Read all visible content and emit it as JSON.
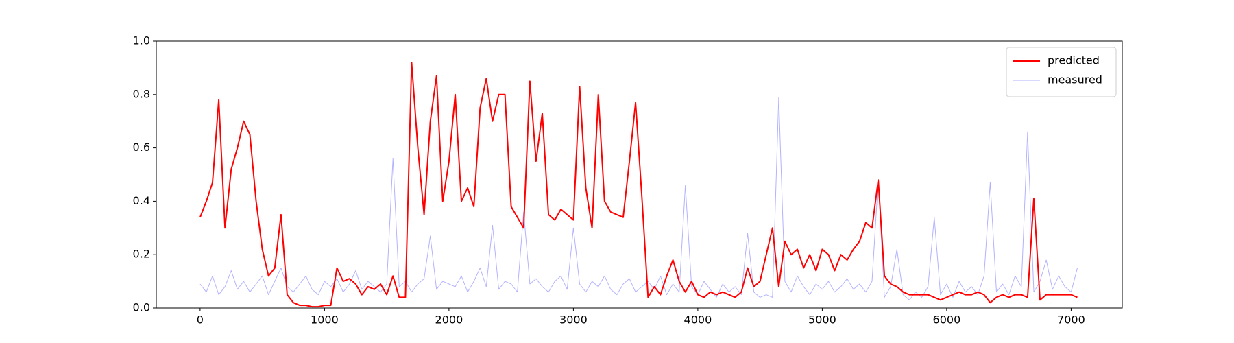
{
  "chart_data": {
    "type": "line",
    "x": [
      0,
      50,
      100,
      150,
      200,
      250,
      300,
      350,
      400,
      450,
      500,
      550,
      600,
      650,
      700,
      750,
      800,
      850,
      900,
      950,
      1000,
      1050,
      1100,
      1150,
      1200,
      1250,
      1300,
      1350,
      1400,
      1450,
      1500,
      1550,
      1600,
      1650,
      1700,
      1750,
      1800,
      1850,
      1900,
      1950,
      2000,
      2050,
      2100,
      2150,
      2200,
      2250,
      2300,
      2350,
      2400,
      2450,
      2500,
      2550,
      2600,
      2650,
      2700,
      2750,
      2800,
      2850,
      2900,
      2950,
      3000,
      3050,
      3100,
      3150,
      3200,
      3250,
      3300,
      3350,
      3400,
      3450,
      3500,
      3550,
      3600,
      3650,
      3700,
      3750,
      3800,
      3850,
      3900,
      3950,
      4000,
      4050,
      4100,
      4150,
      4200,
      4250,
      4300,
      4350,
      4400,
      4450,
      4500,
      4550,
      4600,
      4650,
      4700,
      4750,
      4800,
      4850,
      4900,
      4950,
      5000,
      5050,
      5100,
      5150,
      5200,
      5250,
      5300,
      5350,
      5400,
      5450,
      5500,
      5550,
      5600,
      5650,
      5700,
      5750,
      5800,
      5850,
      5900,
      5950,
      6000,
      6050,
      6100,
      6150,
      6200,
      6250,
      6300,
      6350,
      6400,
      6450,
      6500,
      6550,
      6600,
      6650,
      6700,
      6750,
      6800,
      6850,
      6900,
      6950,
      7000,
      7050
    ],
    "series": [
      {
        "name": "predicted",
        "color": "#ff0000",
        "width": 2,
        "opacity": 1,
        "values": [
          0.34,
          0.4,
          0.47,
          0.78,
          0.3,
          0.52,
          0.6,
          0.7,
          0.65,
          0.4,
          0.22,
          0.12,
          0.15,
          0.35,
          0.05,
          0.02,
          0.01,
          0.01,
          0.005,
          0.005,
          0.01,
          0.01,
          0.15,
          0.1,
          0.11,
          0.09,
          0.05,
          0.08,
          0.07,
          0.09,
          0.05,
          0.12,
          0.04,
          0.04,
          0.92,
          0.6,
          0.35,
          0.7,
          0.87,
          0.4,
          0.55,
          0.8,
          0.4,
          0.45,
          0.38,
          0.75,
          0.86,
          0.7,
          0.8,
          0.8,
          0.38,
          0.34,
          0.3,
          0.85,
          0.55,
          0.73,
          0.35,
          0.33,
          0.37,
          0.35,
          0.33,
          0.83,
          0.45,
          0.3,
          0.8,
          0.4,
          0.36,
          0.35,
          0.34,
          0.55,
          0.77,
          0.42,
          0.04,
          0.08,
          0.05,
          0.12,
          0.18,
          0.1,
          0.06,
          0.1,
          0.05,
          0.04,
          0.06,
          0.05,
          0.06,
          0.05,
          0.04,
          0.06,
          0.15,
          0.08,
          0.1,
          0.2,
          0.3,
          0.08,
          0.25,
          0.2,
          0.22,
          0.15,
          0.2,
          0.14,
          0.22,
          0.2,
          0.14,
          0.2,
          0.18,
          0.22,
          0.25,
          0.32,
          0.3,
          0.48,
          0.12,
          0.09,
          0.08,
          0.06,
          0.05,
          0.05,
          0.05,
          0.05,
          0.04,
          0.03,
          0.04,
          0.05,
          0.06,
          0.05,
          0.05,
          0.06,
          0.05,
          0.02,
          0.04,
          0.05,
          0.04,
          0.05,
          0.05,
          0.04,
          0.41,
          0.03,
          0.05,
          0.05,
          0.05,
          0.05,
          0.05,
          0.04
        ]
      },
      {
        "name": "measured",
        "color": "#0000ff",
        "width": 1,
        "opacity": 0.3,
        "values": [
          0.09,
          0.06,
          0.12,
          0.05,
          0.08,
          0.14,
          0.07,
          0.1,
          0.06,
          0.09,
          0.12,
          0.05,
          0.1,
          0.15,
          0.08,
          0.06,
          0.09,
          0.12,
          0.07,
          0.05,
          0.1,
          0.08,
          0.11,
          0.06,
          0.09,
          0.14,
          0.07,
          0.1,
          0.08,
          0.06,
          0.09,
          0.56,
          0.08,
          0.1,
          0.06,
          0.09,
          0.11,
          0.27,
          0.07,
          0.1,
          0.09,
          0.08,
          0.12,
          0.06,
          0.1,
          0.15,
          0.08,
          0.31,
          0.07,
          0.1,
          0.09,
          0.06,
          0.36,
          0.09,
          0.11,
          0.08,
          0.06,
          0.1,
          0.12,
          0.07,
          0.3,
          0.09,
          0.06,
          0.1,
          0.08,
          0.12,
          0.07,
          0.05,
          0.09,
          0.11,
          0.06,
          0.08,
          0.1,
          0.07,
          0.12,
          0.05,
          0.09,
          0.06,
          0.46,
          0.08,
          0.05,
          0.1,
          0.07,
          0.04,
          0.09,
          0.06,
          0.08,
          0.05,
          0.28,
          0.06,
          0.04,
          0.05,
          0.04,
          0.79,
          0.1,
          0.06,
          0.12,
          0.08,
          0.05,
          0.09,
          0.07,
          0.1,
          0.06,
          0.08,
          0.11,
          0.07,
          0.09,
          0.06,
          0.1,
          0.48,
          0.04,
          0.08,
          0.22,
          0.05,
          0.03,
          0.06,
          0.04,
          0.08,
          0.34,
          0.05,
          0.09,
          0.04,
          0.1,
          0.06,
          0.08,
          0.05,
          0.12,
          0.47,
          0.06,
          0.09,
          0.05,
          0.12,
          0.08,
          0.66,
          0.06,
          0.1,
          0.18,
          0.07,
          0.12,
          0.08,
          0.06,
          0.15
        ]
      }
    ],
    "xlim": [
      -352,
      7411
    ],
    "ylim": [
      0,
      1
    ],
    "xticks": [
      0,
      1000,
      2000,
      3000,
      4000,
      5000,
      6000,
      7000
    ],
    "yticks": [
      {
        "value": 0,
        "label": "0.0"
      },
      {
        "value": 0.2,
        "label": "0.2"
      },
      {
        "value": 0.4,
        "label": "0.4"
      },
      {
        "value": 0.6,
        "label": "0.6"
      },
      {
        "value": 0.8,
        "label": "0.8"
      },
      {
        "value": 1,
        "label": "1.0"
      }
    ],
    "legend": "upper right"
  }
}
